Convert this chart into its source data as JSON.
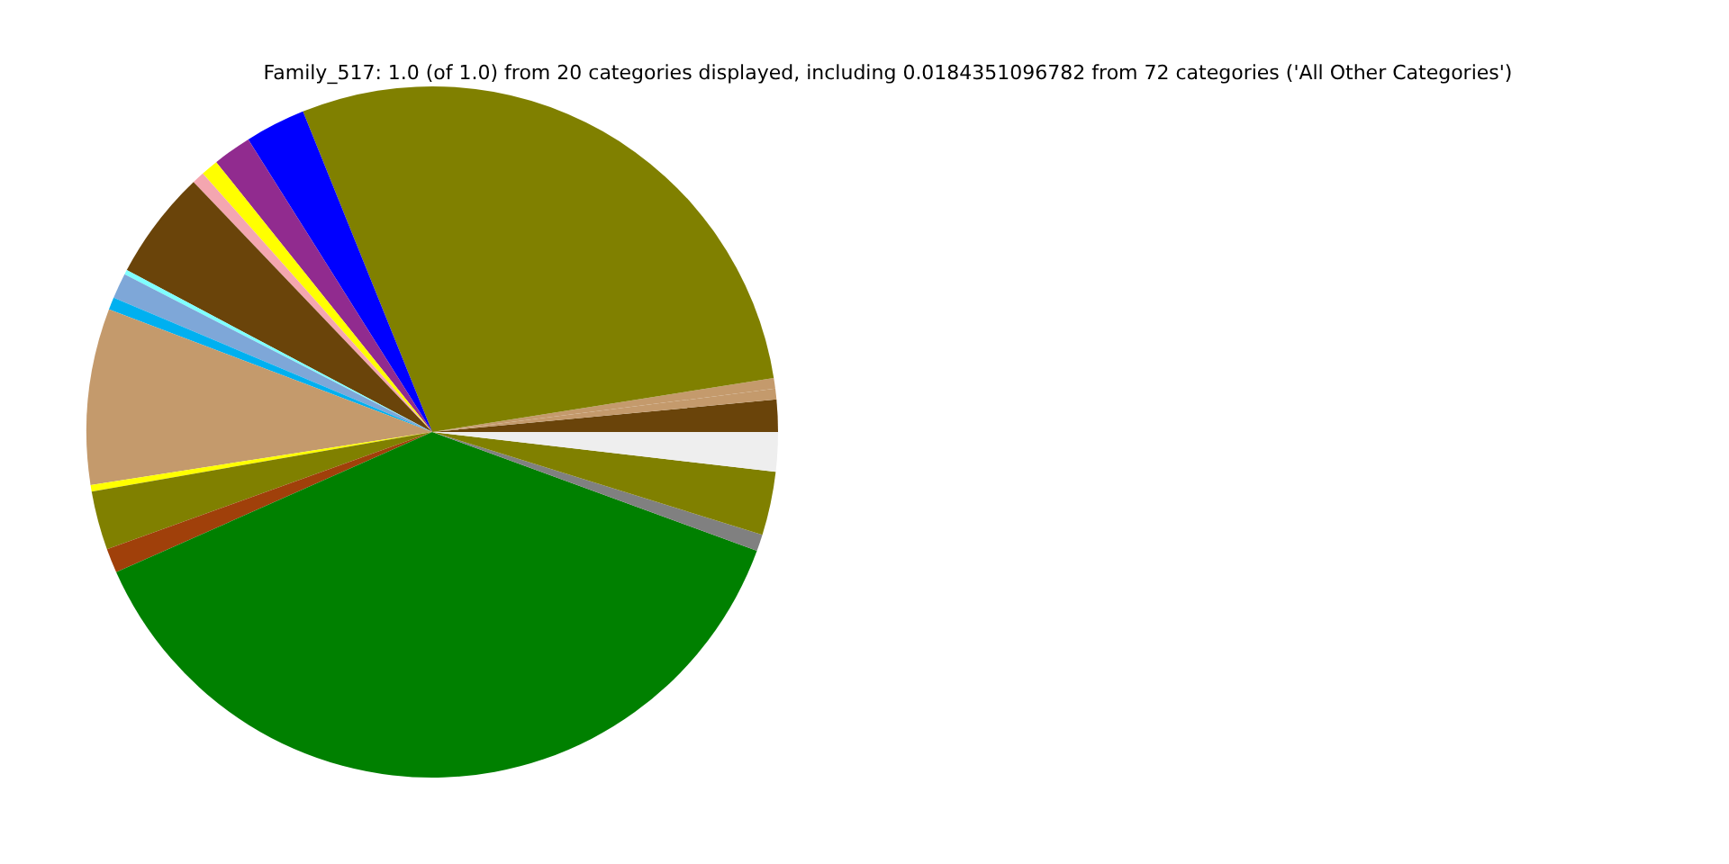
{
  "chart_data": {
    "type": "pie",
    "title": "Family_517: 1.0 (of 1.0) from 20 categories displayed, including 0.0184351096782 from 72 categories ('All Other Categories')",
    "categories": [
      null,
      null,
      null,
      null,
      null,
      null,
      null,
      null,
      null,
      null,
      null,
      null,
      null,
      null,
      null,
      null,
      null,
      null,
      null,
      null
    ],
    "values": [
      1.5,
      0.5,
      0.5,
      28.6,
      2.83,
      1.81,
      0.81,
      0.58,
      5.11,
      0.22,
      1.19,
      0.58,
      8.22,
      0.31,
      2.75,
      1.14,
      37.76,
      0.78,
      2.97,
      1.84
    ],
    "colors": [
      "#6a440a",
      "#c49a6c",
      "#c49a6c",
      "#808000",
      "#0000ff",
      "#912b8f",
      "#ffff00",
      "#f4a6b0",
      "#6a440a",
      "#7fffff",
      "#7ea7d8",
      "#00b0f0",
      "#c49a6c",
      "#ffff00",
      "#808000",
      "#a0400a",
      "#008000",
      "#808080",
      "#808000",
      "#eeeeee"
    ]
  }
}
